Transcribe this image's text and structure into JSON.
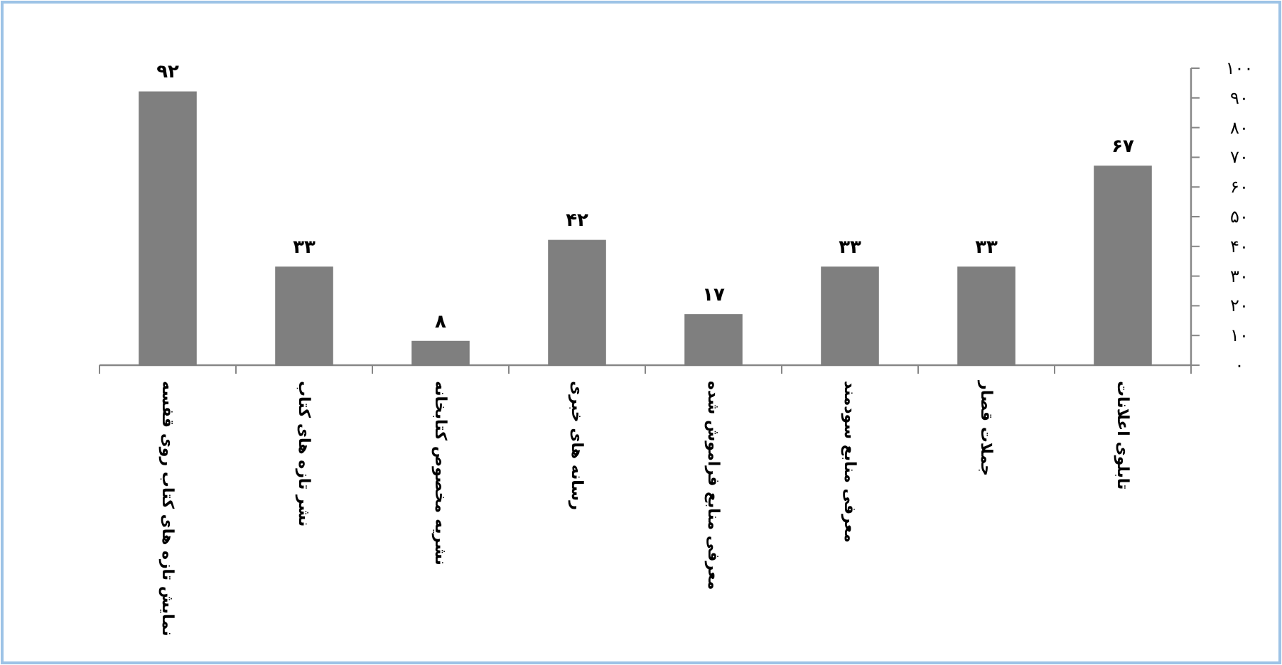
{
  "chart_data": {
    "type": "bar",
    "categories": [
      "نمایش تازه های کتاب روی قفسه",
      "نشر تازه های کتاب",
      "نشریه مخصوص کتابخانه",
      "رسانه های خبری",
      "معرفی منابع فراموش شده",
      "معرفی منابع سودمند",
      "جملات قصار",
      "تابلوی اعلانات"
    ],
    "values": [
      92,
      33,
      8,
      42,
      17,
      33,
      33,
      67
    ],
    "value_labels": [
      "۹۲",
      "۳۳",
      "۸",
      "۴۲",
      "۱۷",
      "۳۳",
      "۳۳",
      "۶۷"
    ],
    "color": "#7f7f7f",
    "ylim": [
      0,
      100
    ],
    "yticks": [
      {
        "value": 0,
        "label": "۰"
      },
      {
        "value": 10,
        "label": "۱۰"
      },
      {
        "value": 20,
        "label": "۲۰"
      },
      {
        "value": 30,
        "label": "۳۰"
      },
      {
        "value": 40,
        "label": "۴۰"
      },
      {
        "value": 50,
        "label": "۵۰"
      },
      {
        "value": 60,
        "label": "۶۰"
      },
      {
        "value": 70,
        "label": "۷۰"
      },
      {
        "value": 80,
        "label": "۸۰"
      },
      {
        "value": 90,
        "label": "۹۰"
      },
      {
        "value": 100,
        "label": "۱۰۰"
      }
    ]
  }
}
